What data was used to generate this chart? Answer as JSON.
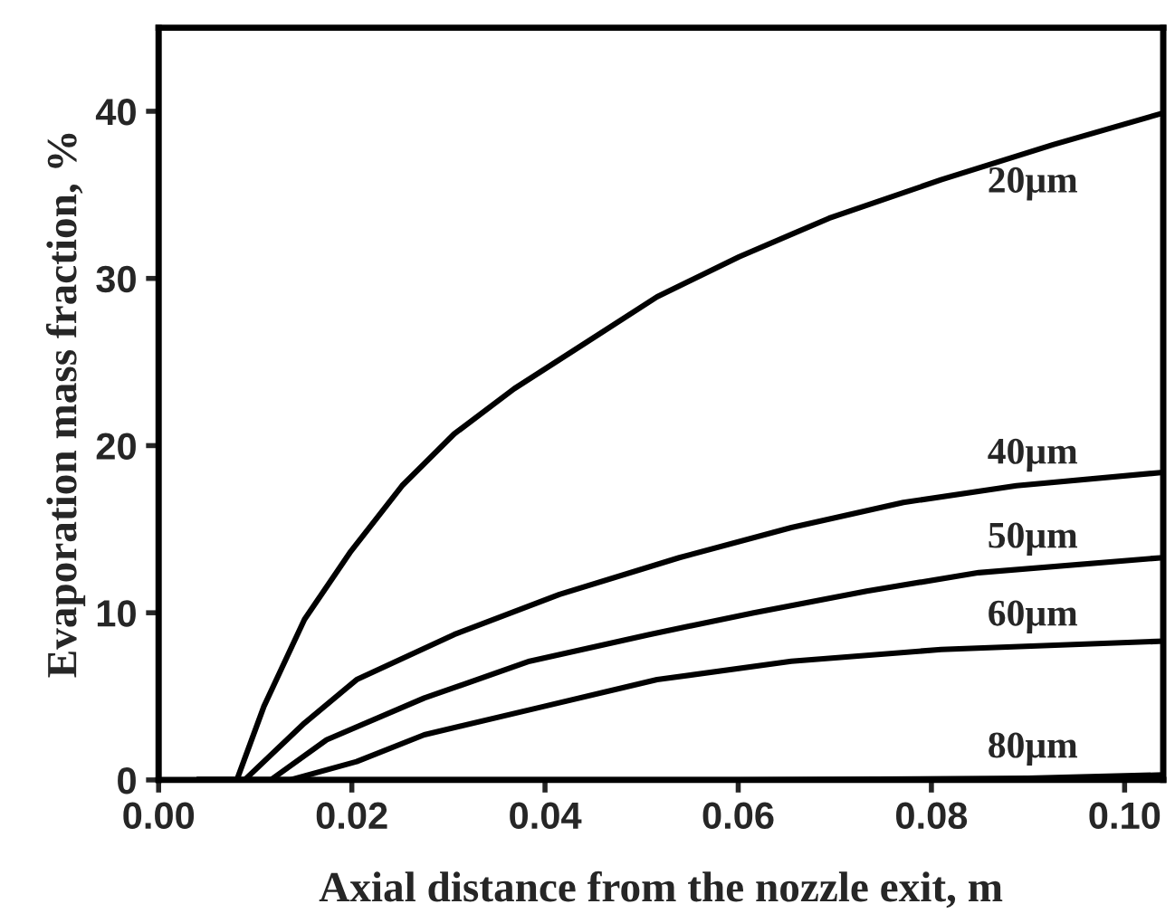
{
  "chart_data": {
    "type": "line",
    "xlabel": "Axial distance from the nozzle exit, m",
    "ylabel": "Evaporation mass fraction, %",
    "xlim": [
      0,
      0.104
    ],
    "ylim": [
      0,
      45
    ],
    "xticks": [
      {
        "value": 0,
        "label": "0.00"
      },
      {
        "value": 0.02,
        "label": "0.02"
      },
      {
        "value": 0.04,
        "label": "0.04"
      },
      {
        "value": 0.06,
        "label": "0.06"
      },
      {
        "value": 0.08,
        "label": "0.08"
      },
      {
        "value": 0.1,
        "label": "0.10"
      }
    ],
    "yticks": [
      0,
      10,
      20,
      30,
      40
    ],
    "grid": false,
    "legend": false,
    "line_style": "solid",
    "marker": "none",
    "series": [
      {
        "name": "20μm",
        "color": "#000000",
        "x": [
          0.004,
          0.0081,
          0.0109,
          0.0151,
          0.0198,
          0.0252,
          0.0306,
          0.0368,
          0.0438,
          0.0516,
          0.0601,
          0.0694,
          0.081,
          0.0926,
          0.104
        ],
        "values": [
          0,
          0,
          4.4,
          9.6,
          13.6,
          17.6,
          20.7,
          23.4,
          26.0,
          28.9,
          31.3,
          33.6,
          35.9,
          38.0,
          39.9
        ]
      },
      {
        "name": "40μm",
        "color": "#000000",
        "x": [
          0.004,
          0.0089,
          0.0151,
          0.0205,
          0.0306,
          0.0415,
          0.0539,
          0.0655,
          0.0771,
          0.0888,
          0.104
        ],
        "values": [
          0,
          0,
          3.4,
          6.0,
          8.7,
          11.1,
          13.3,
          15.1,
          16.6,
          17.6,
          18.4
        ]
      },
      {
        "name": "50μm",
        "color": "#000000",
        "x": [
          0.004,
          0.0116,
          0.0174,
          0.0275,
          0.0384,
          0.0508,
          0.0616,
          0.0733,
          0.0849,
          0.104
        ],
        "values": [
          0,
          0,
          2.4,
          4.9,
          7.1,
          8.7,
          10.0,
          11.3,
          12.4,
          13.3
        ]
      },
      {
        "name": "60μm",
        "color": "#000000",
        "x": [
          0.004,
          0.0136,
          0.0205,
          0.0275,
          0.0399,
          0.0516,
          0.0655,
          0.081,
          0.104
        ],
        "values": [
          0,
          0,
          1.1,
          2.7,
          4.4,
          6.0,
          7.1,
          7.8,
          8.3
        ]
      },
      {
        "name": "80μm",
        "color": "#000000",
        "x": [
          0.004,
          0.012,
          0.06,
          0.09,
          0.104
        ],
        "values": [
          0,
          0,
          0,
          0.1,
          0.3
        ]
      }
    ]
  }
}
